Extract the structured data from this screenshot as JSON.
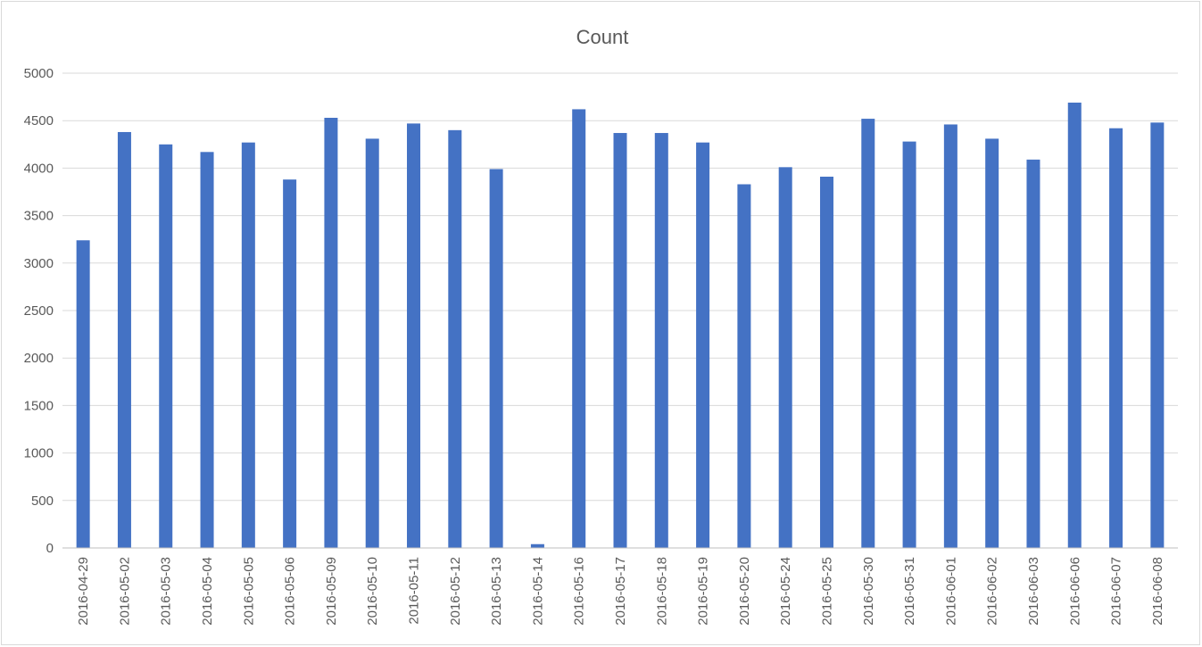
{
  "chart_data": {
    "type": "bar",
    "title": "Count",
    "xlabel": "",
    "ylabel": "",
    "ylim": [
      0,
      5000
    ],
    "yticks": [
      0,
      500,
      1000,
      1500,
      2000,
      2500,
      3000,
      3500,
      4000,
      4500,
      5000
    ],
    "grid": true,
    "legend": "none",
    "bar_color": "#4472C4",
    "categories": [
      "2016-04-29",
      "2016-05-02",
      "2016-05-03",
      "2016-05-04",
      "2016-05-05",
      "2016-05-06",
      "2016-05-09",
      "2016-05-10",
      "2016-05-11",
      "2016-05-12",
      "2016-05-13",
      "2016-05-14",
      "2016-05-16",
      "2016-05-17",
      "2016-05-18",
      "2016-05-19",
      "2016-05-20",
      "2016-05-24",
      "2016-05-25",
      "2016-05-30",
      "2016-05-31",
      "2016-06-01",
      "2016-06-02",
      "2016-06-03",
      "2016-06-06",
      "2016-06-07",
      "2016-06-08"
    ],
    "values": [
      3240,
      4380,
      4250,
      4170,
      4270,
      3880,
      4530,
      4310,
      4470,
      4400,
      3990,
      40,
      4620,
      4370,
      4370,
      4270,
      3830,
      4010,
      3910,
      4520,
      4280,
      4460,
      4310,
      4090,
      4690,
      4420,
      4480
    ]
  }
}
